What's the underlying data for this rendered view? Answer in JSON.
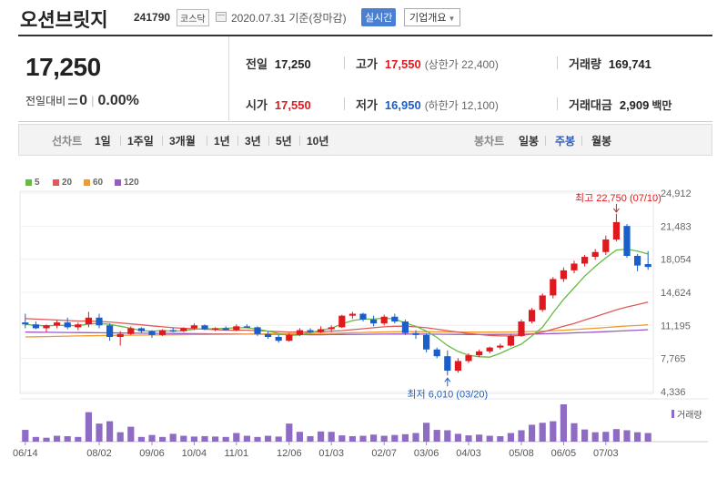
{
  "stock": {
    "name": "오션브릿지",
    "code": "241790",
    "market": "코스닥",
    "as_of": "2020.07.31 기준(장마감)",
    "realtime_button": "실시간",
    "company_info_button": "기업개요",
    "company_info_caret": "▼"
  },
  "summary": {
    "price": "17,250",
    "change_label": "전일대비",
    "change_value": "0",
    "change_pct": "0.00%",
    "prev_close_label": "전일",
    "prev_close": "17,250",
    "high_label": "고가",
    "high": "17,550",
    "upper_limit": "(상한가 22,400)",
    "volume_label": "거래량",
    "volume": "169,741",
    "open_label": "시가",
    "open": "17,550",
    "low_label": "저가",
    "low": "16,950",
    "lower_limit": "(하한가 12,100)",
    "amount_label": "거래대금",
    "amount": "2,909",
    "amount_unit": "백만"
  },
  "period_bar": {
    "line_chart_label": "선차트",
    "line_periods": [
      "1일",
      "1주일",
      "3개월",
      "1년",
      "3년",
      "5년",
      "10년"
    ],
    "candle_label": "봉차트",
    "candle_periods": [
      "일봉",
      "주봉",
      "월봉"
    ],
    "candle_active": "주봉"
  },
  "colors": {
    "up": "#e0191e",
    "down": "#1a5fc9",
    "ma5": "#66bb44",
    "ma20": "#e05a5a",
    "ma60": "#f29a2e",
    "ma120": "#9b59c6",
    "volume": "#8e6cc4"
  },
  "chart_data": {
    "type": "candlestick",
    "interval": "weekly",
    "legend": [
      {
        "name": "5",
        "color": "#66bb44"
      },
      {
        "name": "20",
        "color": "#e05a5a"
      },
      {
        "name": "60",
        "color": "#f29a2e"
      },
      {
        "name": "120",
        "color": "#9b59c6"
      }
    ],
    "y_ticks": [
      "24,912",
      "21,483",
      "18,054",
      "14,624",
      "11,195",
      "7,765",
      "4,336"
    ],
    "ylim": [
      4336,
      24912
    ],
    "x_ticks": [
      "06/14",
      "08/02",
      "09/06",
      "10/04",
      "11/01",
      "12/06",
      "01/03",
      "02/07",
      "03/06",
      "04/03",
      "05/08",
      "06/05",
      "07/03"
    ],
    "x_tick_index": [
      0,
      7,
      12,
      16,
      20,
      25,
      29,
      34,
      38,
      42,
      47,
      51,
      55
    ],
    "annotations": {
      "high": {
        "text": "최고 22,750 (07/10)",
        "index": 56,
        "value": 22750
      },
      "low": {
        "text": "최저 6,010 (03/20)",
        "index": 40,
        "value": 6010
      }
    },
    "volume_label": "거래량",
    "ohlc": [
      [
        11500,
        12400,
        10900,
        11300
      ],
      [
        11300,
        11600,
        10800,
        10900
      ],
      [
        10900,
        11300,
        10500,
        11200
      ],
      [
        11200,
        11700,
        10900,
        11500
      ],
      [
        11500,
        12000,
        10800,
        11000
      ],
      [
        11000,
        11500,
        10700,
        11300
      ],
      [
        11300,
        12600,
        11000,
        12000
      ],
      [
        12000,
        12400,
        10900,
        11200
      ],
      [
        11200,
        11400,
        9600,
        10000
      ],
      [
        10000,
        10600,
        9100,
        10300
      ],
      [
        10300,
        11100,
        10200,
        10900
      ],
      [
        10900,
        11000,
        10400,
        10600
      ],
      [
        10600,
        10700,
        9900,
        10200
      ],
      [
        10200,
        10800,
        10100,
        10700
      ],
      [
        10700,
        11000,
        10500,
        10600
      ],
      [
        10600,
        11000,
        10500,
        10900
      ],
      [
        10900,
        11400,
        10700,
        11200
      ],
      [
        11200,
        11300,
        10700,
        10800
      ],
      [
        10800,
        11000,
        10600,
        10900
      ],
      [
        10900,
        11100,
        10700,
        10700
      ],
      [
        10700,
        11300,
        10600,
        11100
      ],
      [
        11100,
        11300,
        10900,
        11000
      ],
      [
        11000,
        11100,
        10100,
        10300
      ],
      [
        10300,
        10600,
        9800,
        10000
      ],
      [
        10000,
        10200,
        9400,
        9600
      ],
      [
        9600,
        10400,
        9500,
        10200
      ],
      [
        10200,
        10900,
        10100,
        10700
      ],
      [
        10700,
        10900,
        10400,
        10500
      ],
      [
        10500,
        11100,
        10400,
        10800
      ],
      [
        10800,
        11200,
        10500,
        11000
      ],
      [
        11000,
        12300,
        10900,
        12200
      ],
      [
        12200,
        12600,
        11900,
        12400
      ],
      [
        12400,
        12500,
        11600,
        11800
      ],
      [
        11800,
        12200,
        11100,
        11400
      ],
      [
        11400,
        12300,
        11200,
        12100
      ],
      [
        12100,
        12400,
        11400,
        11600
      ],
      [
        11600,
        11800,
        10200,
        10400
      ],
      [
        10400,
        10700,
        9800,
        10200
      ],
      [
        10200,
        10400,
        8400,
        8700
      ],
      [
        8700,
        8900,
        7800,
        8000
      ],
      [
        8000,
        8600,
        6010,
        6500
      ],
      [
        6500,
        7800,
        6300,
        7500
      ],
      [
        7500,
        8300,
        7300,
        8100
      ],
      [
        8100,
        8700,
        7900,
        8500
      ],
      [
        8500,
        9000,
        8300,
        8900
      ],
      [
        8900,
        9300,
        8700,
        9100
      ],
      [
        9100,
        10300,
        9000,
        10100
      ],
      [
        10100,
        11800,
        10000,
        11600
      ],
      [
        11600,
        13000,
        11400,
        12800
      ],
      [
        12800,
        14500,
        12600,
        14300
      ],
      [
        14300,
        16200,
        14000,
        16000
      ],
      [
        16000,
        17200,
        15700,
        16900
      ],
      [
        16900,
        17900,
        16600,
        17600
      ],
      [
        17600,
        18500,
        17300,
        18300
      ],
      [
        18300,
        19100,
        18000,
        18800
      ],
      [
        18800,
        20500,
        18500,
        20100
      ],
      [
        20100,
        22750,
        19900,
        21900
      ],
      [
        21500,
        21700,
        18200,
        18400
      ],
      [
        18400,
        18600,
        16800,
        17400
      ],
      [
        17550,
        18900,
        16950,
        17250
      ]
    ],
    "volume": [
      3.0,
      1.2,
      1.0,
      1.5,
      1.4,
      1.2,
      7.5,
      4.6,
      5.2,
      2.4,
      3.8,
      1.2,
      1.7,
      1.2,
      2.0,
      1.5,
      1.3,
      1.4,
      1.3,
      1.2,
      2.2,
      1.5,
      1.2,
      1.5,
      1.3,
      4.6,
      2.5,
      1.4,
      2.6,
      2.5,
      1.6,
      1.4,
      1.5,
      1.8,
      1.5,
      1.7,
      1.9,
      2.2,
      4.8,
      3.0,
      2.9,
      2.0,
      1.6,
      1.8,
      1.5,
      1.4,
      2.2,
      2.9,
      4.3,
      4.8,
      5.2,
      9.5,
      4.7,
      3.1,
      2.4,
      2.5,
      3.2,
      2.9,
      2.4,
      2.2
    ],
    "ma_series": {
      "ma5": [
        11300,
        11200,
        11150,
        11200,
        11200,
        11150,
        11350,
        11400,
        11300,
        11100,
        10900,
        10650,
        10600,
        10650,
        10600,
        10650,
        10800,
        10850,
        10850,
        10900,
        10950,
        10950,
        10800,
        10600,
        10350,
        10150,
        10200,
        10450,
        10700,
        10900,
        11350,
        11700,
        11850,
        11850,
        11950,
        11850,
        11450,
        11100,
        10600,
        9950,
        9100,
        8500,
        8100,
        7950,
        7900,
        8300,
        8800,
        9250,
        10100,
        11000,
        12500,
        13900,
        15100,
        16300,
        17300,
        18200,
        19000,
        19100,
        18900,
        18600
      ],
      "ma20": [
        11900,
        11850,
        11800,
        11750,
        11700,
        11650,
        11650,
        11600,
        11550,
        11450,
        11350,
        11250,
        11150,
        11050,
        10950,
        10900,
        10850,
        10800,
        10750,
        10700,
        10700,
        10700,
        10650,
        10600,
        10550,
        10500,
        10500,
        10500,
        10550,
        10600,
        10650,
        10750,
        10850,
        10950,
        11050,
        11100,
        11100,
        11050,
        10950,
        10800,
        10650,
        10500,
        10350,
        10250,
        10150,
        10100,
        10100,
        10150,
        10300,
        10500,
        10800,
        11100,
        11400,
        11750,
        12100,
        12450,
        12800,
        13100,
        13350,
        13600
      ],
      "ma60": [
        10000,
        10020,
        10040,
        10060,
        10080,
        10100,
        10120,
        10140,
        10160,
        10170,
        10180,
        10190,
        10200,
        10210,
        10220,
        10230,
        10240,
        10250,
        10260,
        10270,
        10280,
        10290,
        10300,
        10310,
        10310,
        10320,
        10330,
        10340,
        10360,
        10380,
        10400,
        10430,
        10460,
        10490,
        10520,
        10540,
        10550,
        10550,
        10540,
        10530,
        10520,
        10510,
        10500,
        10500,
        10500,
        10510,
        10520,
        10540,
        10570,
        10600,
        10650,
        10700,
        10760,
        10830,
        10900,
        10980,
        11060,
        11130,
        11190,
        11250
      ],
      "ma120": [
        10500,
        10490,
        10480,
        10470,
        10460,
        10450,
        10440,
        10430,
        10420,
        10410,
        10400,
        10390,
        10380,
        10370,
        10360,
        10350,
        10340,
        10330,
        10320,
        10310,
        10300,
        10290,
        10280,
        10270,
        10260,
        10250,
        10240,
        10230,
        10230,
        10240,
        10250,
        10260,
        10270,
        10280,
        10290,
        10300,
        10300,
        10300,
        10290,
        10280,
        10270,
        10260,
        10250,
        10250,
        10250,
        10260,
        10270,
        10280,
        10300,
        10320,
        10350,
        10380,
        10420,
        10460,
        10500,
        10550,
        10600,
        10650,
        10700,
        10750
      ]
    }
  }
}
